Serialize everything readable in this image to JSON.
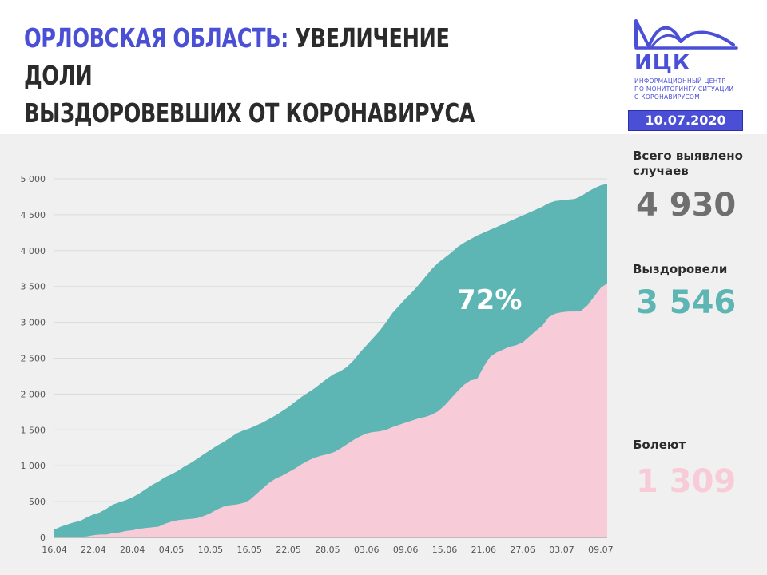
{
  "title": {
    "region": "ОРЛОВСКАЯ ОБЛАСТЬ:",
    "line1_rest": " УВЕЛИЧЕНИЕ ДОЛИ",
    "line2": "ВЫЗДОРОВЕВШИХ ОТ КОРОНАВИРУСА"
  },
  "logo": {
    "name": "ИЦК",
    "description_lines": [
      "ИНФОРМАЦИОННЫЙ ЦЕНТР",
      "ПО МОНИТОРИНГУ СИТУАЦИИ",
      "С КОРОНАВИРУСОМ"
    ]
  },
  "date": "10.07.2020",
  "stats": {
    "total": {
      "label": "Всего выявлено случаев",
      "value": "4 930"
    },
    "recovered": {
      "label": "Выздоровели",
      "value": "3 546"
    },
    "sick": {
      "label": "Болеют",
      "value": "1 309"
    }
  },
  "colors": {
    "accent": "#4a4fd6",
    "total_area": "#5db5b4",
    "recovered_area": "#f7ccd8",
    "panel": "#f0f0f0"
  },
  "chart_data": {
    "type": "area",
    "title": "",
    "xlabel": "",
    "ylabel": "",
    "ylim": [
      0,
      5000
    ],
    "y_ticks": [
      0,
      500,
      1000,
      1500,
      2000,
      2500,
      3000,
      3500,
      4000,
      4500,
      5000
    ],
    "y_tick_labels": [
      "0",
      "500",
      "1 000",
      "1 500",
      "2 000",
      "2 500",
      "3 000",
      "3 500",
      "4 000",
      "4 500",
      "5 000"
    ],
    "x_tick_labels": [
      "16.04",
      "22.04",
      "28.04",
      "04.05",
      "10.05",
      "16.05",
      "22.05",
      "28.05",
      "03.06",
      "09.06",
      "15.06",
      "21.06",
      "27.06",
      "03.07",
      "09.07"
    ],
    "x": [
      "16.04",
      "17.04",
      "18.04",
      "19.04",
      "20.04",
      "21.04",
      "22.04",
      "23.04",
      "24.04",
      "25.04",
      "26.04",
      "27.04",
      "28.04",
      "29.04",
      "30.04",
      "01.05",
      "02.05",
      "03.05",
      "04.05",
      "05.05",
      "06.05",
      "07.05",
      "08.05",
      "09.05",
      "10.05",
      "11.05",
      "12.05",
      "13.05",
      "14.05",
      "15.05",
      "16.05",
      "17.05",
      "18.05",
      "19.05",
      "20.05",
      "21.05",
      "22.05",
      "23.05",
      "24.05",
      "25.05",
      "26.05",
      "27.05",
      "28.05",
      "29.05",
      "30.05",
      "31.05",
      "01.06",
      "02.06",
      "03.06",
      "04.06",
      "05.06",
      "06.06",
      "07.06",
      "08.06",
      "09.06",
      "10.06",
      "11.06",
      "12.06",
      "13.06",
      "14.06",
      "15.06",
      "16.06",
      "17.06",
      "18.06",
      "19.06",
      "20.06",
      "21.06",
      "22.06",
      "23.06",
      "24.06",
      "25.06",
      "26.06",
      "27.06",
      "28.06",
      "29.06",
      "30.06",
      "01.07",
      "02.07",
      "03.07",
      "04.07",
      "05.07",
      "06.07",
      "07.07",
      "08.07",
      "09.07",
      "10.07"
    ],
    "series": [
      {
        "name": "Всего выявлено случаев",
        "values": [
          110,
          150,
          180,
          210,
          230,
          280,
          320,
          350,
          400,
          460,
          490,
          520,
          560,
          610,
          670,
          730,
          780,
          840,
          880,
          930,
          990,
          1040,
          1100,
          1160,
          1220,
          1280,
          1330,
          1390,
          1450,
          1490,
          1520,
          1560,
          1600,
          1650,
          1700,
          1760,
          1820,
          1890,
          1960,
          2020,
          2080,
          2150,
          2220,
          2280,
          2320,
          2380,
          2470,
          2580,
          2680,
          2780,
          2880,
          3000,
          3130,
          3230,
          3330,
          3420,
          3520,
          3630,
          3740,
          3830,
          3900,
          3970,
          4050,
          4110,
          4160,
          4210,
          4250,
          4290,
          4330,
          4370,
          4410,
          4450,
          4490,
          4530,
          4570,
          4610,
          4660,
          4690,
          4700,
          4710,
          4720,
          4760,
          4820,
          4870,
          4910,
          4930
        ]
      },
      {
        "name": "Выздоровели",
        "values": [
          5,
          5,
          5,
          10,
          10,
          15,
          30,
          40,
          40,
          60,
          70,
          90,
          100,
          120,
          130,
          140,
          150,
          190,
          220,
          240,
          250,
          260,
          270,
          300,
          340,
          390,
          430,
          450,
          460,
          480,
          520,
          600,
          680,
          760,
          820,
          860,
          910,
          960,
          1020,
          1070,
          1110,
          1140,
          1160,
          1190,
          1240,
          1300,
          1360,
          1410,
          1450,
          1470,
          1480,
          1500,
          1540,
          1570,
          1600,
          1630,
          1660,
          1680,
          1710,
          1760,
          1840,
          1940,
          2040,
          2130,
          2190,
          2210,
          2380,
          2520,
          2580,
          2620,
          2660,
          2680,
          2720,
          2800,
          2880,
          2950,
          3070,
          3120,
          3140,
          3150,
          3150,
          3160,
          3240,
          3360,
          3480,
          3546
        ]
      }
    ],
    "annotation": "72%"
  }
}
